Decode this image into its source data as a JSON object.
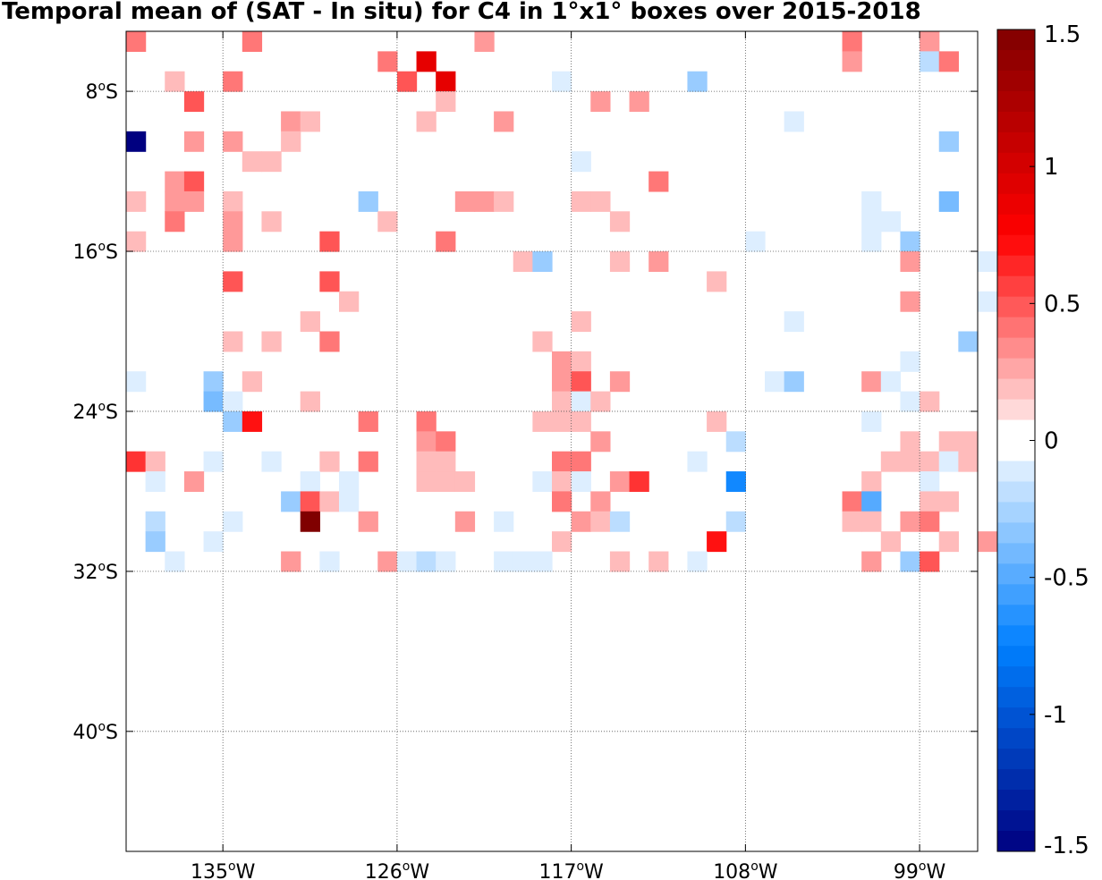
{
  "chart_data": {
    "type": "heatmap",
    "title": "Temporal mean of (SAT - In situ) for C4 in 1°x1° boxes over 2015-2018",
    "x_range_deg_lon": [
      -140,
      -96
    ],
    "y_range_deg_lat": [
      -5,
      -46
    ],
    "x_ticks": [
      {
        "value": -135,
        "label": "135",
        "unit": "o",
        "hemi": "W"
      },
      {
        "value": -126,
        "label": "126",
        "unit": "o",
        "hemi": "W"
      },
      {
        "value": -117,
        "label": "117",
        "unit": "o",
        "hemi": "W"
      },
      {
        "value": -108,
        "label": "108",
        "unit": "o",
        "hemi": "W"
      },
      {
        "value": -99,
        "label": "99",
        "unit": "o",
        "hemi": "W"
      }
    ],
    "y_ticks": [
      {
        "value": -8,
        "label": "8",
        "unit": "o",
        "hemi": "S"
      },
      {
        "value": -16,
        "label": "16",
        "unit": "o",
        "hemi": "S"
      },
      {
        "value": -24,
        "label": "24",
        "unit": "o",
        "hemi": "S"
      },
      {
        "value": -32,
        "label": "32",
        "unit": "o",
        "hemi": "S"
      },
      {
        "value": -40,
        "label": "40",
        "unit": "o",
        "hemi": "S"
      }
    ],
    "grid": "dotted",
    "colorbar": {
      "min": -1.5,
      "max": 1.5,
      "tick_values": [
        1.5,
        1,
        0.5,
        0,
        -0.5,
        -1,
        -1.5
      ],
      "tick_labels": [
        "1.5",
        "1",
        "0.5",
        "0",
        "-0.5",
        "-1",
        "-1.5"
      ],
      "colormap": "blue-white-red"
    },
    "cells": [
      [
        -139.5,
        -5.5,
        0.4
      ],
      [
        -133.5,
        -5.5,
        0.4
      ],
      [
        -121.5,
        -5.5,
        0.3
      ],
      [
        -102.5,
        -5.5,
        0.4
      ],
      [
        -98.5,
        -5.5,
        0.3
      ],
      [
        -126.5,
        -6.5,
        0.4
      ],
      [
        -124.5,
        -6.5,
        0.9
      ],
      [
        -102.5,
        -6.5,
        0.3
      ],
      [
        -98.5,
        -6.5,
        -0.2
      ],
      [
        -97.5,
        -6.5,
        0.4
      ],
      [
        -137.5,
        -7.5,
        0.2
      ],
      [
        -134.5,
        -7.5,
        0.4
      ],
      [
        -125.5,
        -7.5,
        0.5
      ],
      [
        -123.5,
        -7.5,
        0.9
      ],
      [
        -117.5,
        -7.5,
        -0.1
      ],
      [
        -110.5,
        -7.5,
        -0.3
      ],
      [
        -136.5,
        -8.5,
        0.5
      ],
      [
        -123.5,
        -8.5,
        0.2
      ],
      [
        -115.5,
        -8.5,
        0.3
      ],
      [
        -113.5,
        -8.5,
        0.3
      ],
      [
        -131.5,
        -9.5,
        0.3
      ],
      [
        -130.5,
        -9.5,
        0.2
      ],
      [
        -124.5,
        -9.5,
        0.2
      ],
      [
        -120.5,
        -9.5,
        0.3
      ],
      [
        -105.5,
        -9.5,
        -0.1
      ],
      [
        -139.5,
        -10.5,
        -1.5
      ],
      [
        -136.5,
        -10.5,
        0.3
      ],
      [
        -134.5,
        -10.5,
        0.3
      ],
      [
        -131.5,
        -10.5,
        0.2
      ],
      [
        -97.5,
        -10.5,
        -0.3
      ],
      [
        -133.5,
        -11.5,
        0.2
      ],
      [
        -132.5,
        -11.5,
        0.2
      ],
      [
        -116.5,
        -11.5,
        -0.1
      ],
      [
        -137.5,
        -12.5,
        0.3
      ],
      [
        -136.5,
        -12.5,
        0.5
      ],
      [
        -112.5,
        -12.5,
        0.4
      ],
      [
        -139.5,
        -13.5,
        0.2
      ],
      [
        -137.5,
        -13.5,
        0.3
      ],
      [
        -136.5,
        -13.5,
        0.3
      ],
      [
        -134.5,
        -13.5,
        0.2
      ],
      [
        -127.5,
        -13.5,
        -0.3
      ],
      [
        -122.5,
        -13.5,
        0.3
      ],
      [
        -121.5,
        -13.5,
        0.3
      ],
      [
        -120.5,
        -13.5,
        0.2
      ],
      [
        -116.5,
        -13.5,
        0.2
      ],
      [
        -115.5,
        -13.5,
        0.2
      ],
      [
        -101.5,
        -13.5,
        -0.1
      ],
      [
        -97.5,
        -13.5,
        -0.4
      ],
      [
        -137.5,
        -14.5,
        0.4
      ],
      [
        -134.5,
        -14.5,
        0.3
      ],
      [
        -132.5,
        -14.5,
        0.2
      ],
      [
        -126.5,
        -14.5,
        0.2
      ],
      [
        -114.5,
        -14.5,
        0.2
      ],
      [
        -101.5,
        -14.5,
        -0.1
      ],
      [
        -100.5,
        -14.5,
        -0.1
      ],
      [
        -139.5,
        -15.5,
        0.2
      ],
      [
        -134.5,
        -15.5,
        0.3
      ],
      [
        -129.5,
        -15.5,
        0.5
      ],
      [
        -123.5,
        -15.5,
        0.4
      ],
      [
        -107.5,
        -15.5,
        -0.1
      ],
      [
        -101.5,
        -15.5,
        -0.1
      ],
      [
        -99.5,
        -15.5,
        -0.3
      ],
      [
        -119.5,
        -16.5,
        0.2
      ],
      [
        -118.5,
        -16.5,
        -0.3
      ],
      [
        -114.5,
        -16.5,
        0.2
      ],
      [
        -112.5,
        -16.5,
        0.3
      ],
      [
        -99.5,
        -16.5,
        0.3
      ],
      [
        -95.5,
        -16.5,
        -0.1
      ],
      [
        -134.5,
        -17.5,
        0.5
      ],
      [
        -129.5,
        -17.5,
        0.5
      ],
      [
        -109.5,
        -17.5,
        0.2
      ],
      [
        -128.5,
        -18.5,
        0.2
      ],
      [
        -99.5,
        -18.5,
        0.3
      ],
      [
        -95.5,
        -18.5,
        -0.1
      ],
      [
        -130.5,
        -19.5,
        0.2
      ],
      [
        -116.5,
        -19.5,
        0.2
      ],
      [
        -105.5,
        -19.5,
        -0.1
      ],
      [
        -134.5,
        -20.5,
        0.2
      ],
      [
        -132.5,
        -20.5,
        0.2
      ],
      [
        -129.5,
        -20.5,
        0.4
      ],
      [
        -118.5,
        -20.5,
        0.2
      ],
      [
        -96.5,
        -20.5,
        -0.3
      ],
      [
        -117.5,
        -21.5,
        0.3
      ],
      [
        -116.5,
        -21.5,
        0.2
      ],
      [
        -99.5,
        -21.5,
        -0.1
      ],
      [
        -139.5,
        -22.5,
        -0.1
      ],
      [
        -135.5,
        -22.5,
        -0.3
      ],
      [
        -133.5,
        -22.5,
        0.2
      ],
      [
        -117.5,
        -22.5,
        0.3
      ],
      [
        -116.5,
        -22.5,
        0.5
      ],
      [
        -114.5,
        -22.5,
        0.3
      ],
      [
        -106.5,
        -22.5,
        -0.1
      ],
      [
        -105.5,
        -22.5,
        -0.3
      ],
      [
        -101.5,
        -22.5,
        0.3
      ],
      [
        -100.5,
        -22.5,
        -0.1
      ],
      [
        -135.5,
        -23.5,
        -0.4
      ],
      [
        -134.5,
        -23.5,
        -0.1
      ],
      [
        -130.5,
        -23.5,
        0.2
      ],
      [
        -117.5,
        -23.5,
        0.2
      ],
      [
        -116.5,
        -23.5,
        -0.1
      ],
      [
        -115.5,
        -23.5,
        0.2
      ],
      [
        -99.5,
        -23.5,
        -0.1
      ],
      [
        -98.5,
        -23.5,
        0.2
      ],
      [
        -134.5,
        -24.5,
        -0.3
      ],
      [
        -133.5,
        -24.5,
        0.7
      ],
      [
        -127.5,
        -24.5,
        0.4
      ],
      [
        -124.5,
        -24.5,
        0.4
      ],
      [
        -118.5,
        -24.5,
        0.2
      ],
      [
        -117.5,
        -24.5,
        0.2
      ],
      [
        -116.5,
        -24.5,
        0.2
      ],
      [
        -109.5,
        -24.5,
        0.2
      ],
      [
        -101.5,
        -24.5,
        -0.1
      ],
      [
        -124.5,
        -25.5,
        0.3
      ],
      [
        -123.5,
        -25.5,
        0.4
      ],
      [
        -115.5,
        -25.5,
        0.3
      ],
      [
        -108.5,
        -25.5,
        -0.2
      ],
      [
        -99.5,
        -25.5,
        0.2
      ],
      [
        -97.5,
        -25.5,
        0.2
      ],
      [
        -96.5,
        -25.5,
        0.2
      ],
      [
        -139.5,
        -26.5,
        0.6
      ],
      [
        -138.5,
        -26.5,
        0.2
      ],
      [
        -135.5,
        -26.5,
        -0.1
      ],
      [
        -132.5,
        -26.5,
        -0.1
      ],
      [
        -129.5,
        -26.5,
        0.2
      ],
      [
        -127.5,
        -26.5,
        0.4
      ],
      [
        -124.5,
        -26.5,
        0.2
      ],
      [
        -123.5,
        -26.5,
        0.2
      ],
      [
        -117.5,
        -26.5,
        0.4
      ],
      [
        -116.5,
        -26.5,
        0.4
      ],
      [
        -110.5,
        -26.5,
        -0.1
      ],
      [
        -100.5,
        -26.5,
        0.2
      ],
      [
        -99.5,
        -26.5,
        0.2
      ],
      [
        -98.5,
        -26.5,
        0.2
      ],
      [
        -97.5,
        -26.5,
        -0.1
      ],
      [
        -96.5,
        -26.5,
        0.2
      ],
      [
        -138.5,
        -27.5,
        -0.1
      ],
      [
        -136.5,
        -27.5,
        0.3
      ],
      [
        -130.5,
        -27.5,
        -0.1
      ],
      [
        -128.5,
        -27.5,
        -0.1
      ],
      [
        -124.5,
        -27.5,
        0.2
      ],
      [
        -123.5,
        -27.5,
        0.2
      ],
      [
        -122.5,
        -27.5,
        0.2
      ],
      [
        -118.5,
        -27.5,
        -0.1
      ],
      [
        -117.5,
        -27.5,
        0.2
      ],
      [
        -116.5,
        -27.5,
        -0.1
      ],
      [
        -114.5,
        -27.5,
        0.3
      ],
      [
        -113.5,
        -27.5,
        0.6
      ],
      [
        -108.5,
        -27.5,
        -0.7
      ],
      [
        -101.5,
        -27.5,
        0.2
      ],
      [
        -98.5,
        -27.5,
        -0.1
      ],
      [
        -131.5,
        -28.5,
        -0.3
      ],
      [
        -130.5,
        -28.5,
        0.5
      ],
      [
        -129.5,
        -28.5,
        0.2
      ],
      [
        -128.5,
        -28.5,
        -0.1
      ],
      [
        -117.5,
        -28.5,
        0.4
      ],
      [
        -115.5,
        -28.5,
        0.3
      ],
      [
        -102.5,
        -28.5,
        0.4
      ],
      [
        -101.5,
        -28.5,
        -0.5
      ],
      [
        -98.5,
        -28.5,
        0.2
      ],
      [
        -97.5,
        -28.5,
        0.2
      ],
      [
        -138.5,
        -29.5,
        -0.2
      ],
      [
        -134.5,
        -29.5,
        -0.1
      ],
      [
        -130.5,
        -29.5,
        1.5
      ],
      [
        -127.5,
        -29.5,
        0.3
      ],
      [
        -122.5,
        -29.5,
        0.3
      ],
      [
        -120.5,
        -29.5,
        -0.1
      ],
      [
        -116.5,
        -29.5,
        0.3
      ],
      [
        -115.5,
        -29.5,
        0.2
      ],
      [
        -114.5,
        -29.5,
        -0.2
      ],
      [
        -108.5,
        -29.5,
        -0.2
      ],
      [
        -102.5,
        -29.5,
        0.2
      ],
      [
        -101.5,
        -29.5,
        0.2
      ],
      [
        -99.5,
        -29.5,
        0.3
      ],
      [
        -98.5,
        -29.5,
        0.4
      ],
      [
        -138.5,
        -30.5,
        -0.3
      ],
      [
        -135.5,
        -30.5,
        -0.1
      ],
      [
        -117.5,
        -30.5,
        0.2
      ],
      [
        -109.5,
        -30.5,
        0.7
      ],
      [
        -100.5,
        -30.5,
        0.2
      ],
      [
        -97.5,
        -30.5,
        0.2
      ],
      [
        -95.5,
        -30.5,
        0.3
      ],
      [
        -137.5,
        -31.5,
        -0.1
      ],
      [
        -131.5,
        -31.5,
        0.3
      ],
      [
        -129.5,
        -31.5,
        -0.1
      ],
      [
        -126.5,
        -31.5,
        0.3
      ],
      [
        -125.5,
        -31.5,
        -0.1
      ],
      [
        -124.5,
        -31.5,
        -0.2
      ],
      [
        -123.5,
        -31.5,
        -0.1
      ],
      [
        -120.5,
        -31.5,
        -0.1
      ],
      [
        -119.5,
        -31.5,
        -0.1
      ],
      [
        -118.5,
        -31.5,
        -0.1
      ],
      [
        -114.5,
        -31.5,
        0.2
      ],
      [
        -112.5,
        -31.5,
        0.2
      ],
      [
        -110.5,
        -31.5,
        -0.1
      ],
      [
        -101.5,
        -31.5,
        0.3
      ],
      [
        -99.5,
        -31.5,
        -0.3
      ],
      [
        -98.5,
        -31.5,
        0.5
      ]
    ]
  }
}
